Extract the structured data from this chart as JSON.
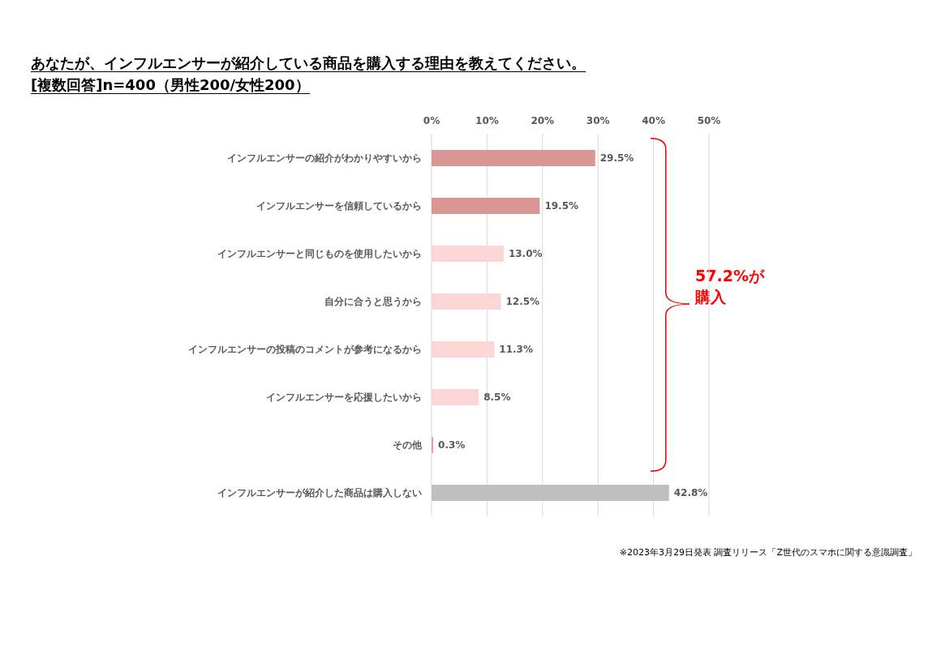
{
  "chart_data": {
    "type": "bar",
    "orientation": "horizontal",
    "title": "あなたが、インフルエンサーが紹介している商品を購入する理由を教えてください。",
    "subtitle": "[複数回答]n=400（男性200/女性200）",
    "categories": [
      "インフルエンサーの紹介がわかりやすいから",
      "インフルエンサーを信頼しているから",
      "インフルエンサーと同じものを使用したいから",
      "自分に合うと思うから",
      "インフルエンサーの投稿のコメントが参考になるから",
      "インフルエンサーを応援したいから",
      "その他",
      "インフルエンサーが紹介した商品は購入しない"
    ],
    "values": [
      29.5,
      19.5,
      13.0,
      12.5,
      11.3,
      8.5,
      0.3,
      42.8
    ],
    "value_labels": [
      "29.5%",
      "19.5%",
      "13.0%",
      "12.5%",
      "11.3%",
      "8.5%",
      "0.3%",
      "42.8%"
    ],
    "colors": [
      "#d99694",
      "#d99694",
      "#fcd5d5",
      "#fcd5d5",
      "#fcd5d5",
      "#fcd5d5",
      "#e6a0a0",
      "#bfbfbf"
    ],
    "xlim": [
      0,
      50
    ],
    "xticks": [
      {
        "value": 0,
        "label": "0%"
      },
      {
        "value": 10,
        "label": "10%"
      },
      {
        "value": 20,
        "label": "20%"
      },
      {
        "value": 30,
        "label": "30%"
      },
      {
        "value": 40,
        "label": "40%"
      },
      {
        "value": 50,
        "label": "50%"
      }
    ],
    "grid": "x",
    "annotations": [
      "57.2%が購入",
      "※2023年3月29日発表 調査リリース「Z世代のスマホに関する意識調査」"
    ]
  }
}
